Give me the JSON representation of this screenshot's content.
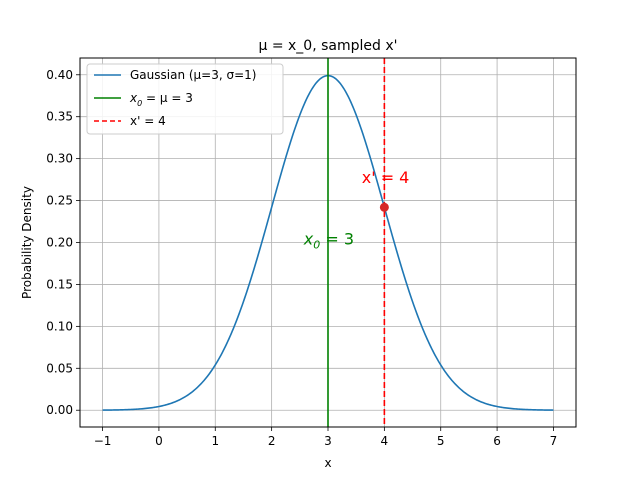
{
  "chart_data": {
    "type": "line",
    "title": "μ = x_0, sampled x'",
    "xlabel": "x",
    "ylabel": "Probability Density",
    "xlim": [
      -1.4,
      7.4
    ],
    "ylim": [
      -0.02,
      0.42
    ],
    "grid": true,
    "legend_position": "top-left",
    "x_ticks": [
      -1,
      0,
      1,
      2,
      3,
      4,
      5,
      6,
      7
    ],
    "x_tick_labels": [
      "−1",
      "0",
      "1",
      "2",
      "3",
      "4",
      "5",
      "6",
      "7"
    ],
    "y_ticks": [
      0,
      0.05,
      0.1,
      0.15,
      0.2,
      0.25,
      0.3,
      0.35,
      0.4
    ],
    "y_tick_labels": [
      "0.00",
      "0.05",
      "0.10",
      "0.15",
      "0.20",
      "0.25",
      "0.30",
      "0.35",
      "0.40"
    ],
    "series": [
      {
        "name": "Gaussian (μ=3, σ=1)",
        "kind": "curve",
        "color": "#1f77b4",
        "mu": 3,
        "sigma": 1,
        "x_range": [
          -1,
          7
        ],
        "x": [
          -1,
          -0.5,
          0,
          0.5,
          1,
          1.5,
          2,
          2.5,
          3,
          3.5,
          4,
          4.5,
          5,
          5.5,
          6,
          6.5,
          7
        ],
        "y": [
          0.0001,
          0.0009,
          0.0044,
          0.0175,
          0.054,
          0.1295,
          0.242,
          0.3521,
          0.3989,
          0.3521,
          0.242,
          0.1295,
          0.054,
          0.0175,
          0.0044,
          0.0009,
          0.0001
        ]
      },
      {
        "name_base": "x",
        "name_sub": "0",
        "name_rest": " = μ = 3",
        "kind": "vline",
        "x": 3,
        "color": "#008000",
        "dash": "solid"
      },
      {
        "name": "x' = 4",
        "kind": "vline",
        "x": 4,
        "color": "#ff0000",
        "dash": "dashed"
      }
    ],
    "points": [
      {
        "x": 4,
        "y": 0.242,
        "color": "#d62728"
      }
    ],
    "annotations": [
      {
        "id": "x0",
        "base": "x",
        "sub": "0",
        "rest": " = 3",
        "x": 3,
        "y": 0.2,
        "color": "#008000",
        "anchor": "end"
      },
      {
        "id": "xprime",
        "text": "x' = 4",
        "x": 4,
        "y": 0.265,
        "color": "#ff0000",
        "anchor": "end"
      }
    ]
  }
}
